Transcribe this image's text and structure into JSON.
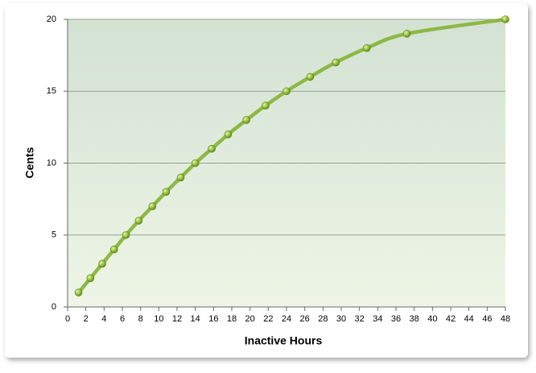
{
  "chart_data": {
    "type": "line",
    "x_label": "Inactive Hours",
    "y_label": "Cents",
    "series": [
      {
        "color": "#8db844",
        "x": [
          1.2,
          2.5,
          3.8,
          5.1,
          6.4,
          7.8,
          9.3,
          10.8,
          12.4,
          14.0,
          15.8,
          17.6,
          19.6,
          21.7,
          24.0,
          26.6,
          29.4,
          32.8,
          37.2,
          48
        ],
        "values": [
          1,
          2,
          3,
          4,
          5,
          6,
          7,
          8,
          9,
          10,
          11,
          12,
          13,
          14,
          15,
          16,
          17,
          18,
          19,
          20
        ]
      }
    ],
    "xlim": [
      0,
      48
    ],
    "xticks": [
      0,
      2,
      4,
      6,
      8,
      10,
      12,
      14,
      16,
      18,
      20,
      22,
      24,
      26,
      28,
      30,
      32,
      34,
      36,
      38,
      40,
      42,
      44,
      46,
      48
    ],
    "ylim": [
      0,
      20
    ],
    "yticks": [
      0,
      5,
      10,
      15,
      20
    ],
    "grid": true
  }
}
